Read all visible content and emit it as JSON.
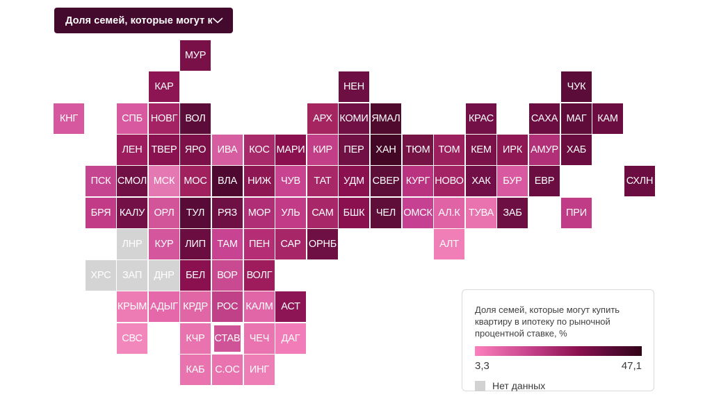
{
  "dropdown": {
    "label": "Доля семей, которые могут к..."
  },
  "legend": {
    "title_lines": {
      "0": "Доля семей, которые могут купить",
      "1": "квартиру в ипотеку по рыночной",
      "2": "процентной ставке, %"
    },
    "min": "3,3",
    "max": "47,1",
    "no_data_label": "Нет данных",
    "no_data_color": "#d2d2d2",
    "gradient_stops": [
      "#fc80bd 0%",
      "#c23f88 35%",
      "#8a1050 62%",
      "#570b36 82%",
      "#330318 100%"
    ]
  },
  "chart_data": {
    "type": "heatmap",
    "variant": "tile-grid-cartogram",
    "title": "Доля семей, которые могут купить квартиру в ипотеку по рыночной процентной ставке, %",
    "scale": {
      "min": 3.3,
      "max": 47.1,
      "min_label": "3,3",
      "max_label": "47,1",
      "no_data_label": "Нет данных"
    },
    "layout": {
      "col_pitch": 45.6,
      "row_pitch": 45.3,
      "tile_size": 44
    },
    "tiles": [
      {
        "label": "МУР",
        "row": 0,
        "col": 4,
        "color": "#7a1048"
      },
      {
        "label": "КАР",
        "row": 1,
        "col": 3,
        "color": "#8e1553"
      },
      {
        "label": "НЕН",
        "row": 1,
        "col": 9,
        "color": "#6d0f42"
      },
      {
        "label": "ЧУК",
        "row": 1,
        "col": 16,
        "color": "#5c0c38"
      },
      {
        "label": "КНГ",
        "row": 2,
        "col": 0,
        "color": "#d6589e"
      },
      {
        "label": "СПБ",
        "row": 2,
        "col": 2,
        "color": "#d8599f"
      },
      {
        "label": "НОВГ",
        "row": 2,
        "col": 3,
        "color": "#a32364"
      },
      {
        "label": "ВОЛ",
        "row": 2,
        "col": 4,
        "color": "#5c0c38"
      },
      {
        "label": "АРХ",
        "row": 2,
        "col": 8,
        "color": "#a52561"
      },
      {
        "label": "КОМИ",
        "row": 2,
        "col": 9,
        "color": "#701044"
      },
      {
        "label": "ЯМАЛ",
        "row": 2,
        "col": 10,
        "color": "#4f0a2e"
      },
      {
        "label": "КРАС",
        "row": 2,
        "col": 13,
        "color": "#721047"
      },
      {
        "label": "САХА",
        "row": 2,
        "col": 15,
        "color": "#6b0d40"
      },
      {
        "label": "МАГ",
        "row": 2,
        "col": 16,
        "color": "#600c3b"
      },
      {
        "label": "КАМ",
        "row": 2,
        "col": 17,
        "color": "#6b0d40"
      },
      {
        "label": "ЛЕН",
        "row": 3,
        "col": 2,
        "color": "#9e1d5e"
      },
      {
        "label": "ТВЕР",
        "row": 3,
        "col": 3,
        "color": "#8a1250"
      },
      {
        "label": "ЯРО",
        "row": 3,
        "col": 4,
        "color": "#7d1048"
      },
      {
        "label": "ИВА",
        "row": 3,
        "col": 5,
        "color": "#d75da1"
      },
      {
        "label": "КОС",
        "row": 3,
        "col": 6,
        "color": "#a82a6a"
      },
      {
        "label": "МАРИ",
        "row": 3,
        "col": 7,
        "color": "#8a1050"
      },
      {
        "label": "КИР",
        "row": 3,
        "col": 8,
        "color": "#c23f88"
      },
      {
        "label": "ПЕР",
        "row": 3,
        "col": 9,
        "color": "#701044"
      },
      {
        "label": "ХАН",
        "row": 3,
        "col": 10,
        "color": "#430624"
      },
      {
        "label": "ТЮМ",
        "row": 3,
        "col": 11,
        "color": "#751345"
      },
      {
        "label": "ТОМ",
        "row": 3,
        "col": 12,
        "color": "#9c1f5e"
      },
      {
        "label": "КЕМ",
        "row": 3,
        "col": 13,
        "color": "#7a1148"
      },
      {
        "label": "ИРК",
        "row": 3,
        "col": 14,
        "color": "#8e1754"
      },
      {
        "label": "АМУР",
        "row": 3,
        "col": 15,
        "color": "#b23078"
      },
      {
        "label": "ХАБ",
        "row": 3,
        "col": 16,
        "color": "#6b0d40"
      },
      {
        "label": "ПСК",
        "row": 4,
        "col": 1,
        "color": "#c64590"
      },
      {
        "label": "СМОЛ",
        "row": 4,
        "col": 2,
        "color": "#701044"
      },
      {
        "label": "МСК",
        "row": 4,
        "col": 3,
        "color": "#e478b2"
      },
      {
        "label": "МОС",
        "row": 4,
        "col": 4,
        "color": "#a1215f"
      },
      {
        "label": "ВЛА",
        "row": 4,
        "col": 5,
        "color": "#4f0830"
      },
      {
        "label": "НИЖ",
        "row": 4,
        "col": 6,
        "color": "#8e1754"
      },
      {
        "label": "ЧУВ",
        "row": 4,
        "col": 7,
        "color": "#c84390"
      },
      {
        "label": "ТАТ",
        "row": 4,
        "col": 8,
        "color": "#a82766"
      },
      {
        "label": "УДМ",
        "row": 4,
        "col": 9,
        "color": "#8a1050"
      },
      {
        "label": "СВЕР",
        "row": 4,
        "col": 10,
        "color": "#5c0d38"
      },
      {
        "label": "КУРГ",
        "row": 4,
        "col": 11,
        "color": "#b93380"
      },
      {
        "label": "НОВО",
        "row": 4,
        "col": 12,
        "color": "#a32364"
      },
      {
        "label": "ХАК",
        "row": 4,
        "col": 13,
        "color": "#730f48"
      },
      {
        "label": "БУР",
        "row": 4,
        "col": 14,
        "color": "#d8599f"
      },
      {
        "label": "ЕВР",
        "row": 4,
        "col": 15,
        "color": "#6b0d40"
      },
      {
        "label": "СХЛН",
        "row": 4,
        "col": 18,
        "color": "#6b0d40"
      },
      {
        "label": "БРЯ",
        "row": 5,
        "col": 1,
        "color": "#c13b86"
      },
      {
        "label": "КАЛУ",
        "row": 5,
        "col": 2,
        "color": "#731048"
      },
      {
        "label": "ОРЛ",
        "row": 5,
        "col": 3,
        "color": "#d25499"
      },
      {
        "label": "ТУЛ",
        "row": 5,
        "col": 4,
        "color": "#570b36"
      },
      {
        "label": "РЯЗ",
        "row": 5,
        "col": 5,
        "color": "#6e1044"
      },
      {
        "label": "МОР",
        "row": 5,
        "col": 6,
        "color": "#b02e76"
      },
      {
        "label": "УЛЬ",
        "row": 5,
        "col": 7,
        "color": "#c13b86"
      },
      {
        "label": "САМ",
        "row": 5,
        "col": 8,
        "color": "#a82768"
      },
      {
        "label": "БШК",
        "row": 5,
        "col": 9,
        "color": "#8a1050"
      },
      {
        "label": "ЧЕЛ",
        "row": 5,
        "col": 10,
        "color": "#5f0e3a"
      },
      {
        "label": "ОМСК",
        "row": 5,
        "col": 11,
        "color": "#c64192"
      },
      {
        "label": "АЛ.К",
        "row": 5,
        "col": 12,
        "color": "#df63a5"
      },
      {
        "label": "ТУВА",
        "row": 5,
        "col": 13,
        "color": "#e873ae"
      },
      {
        "label": "ЗАБ",
        "row": 5,
        "col": 14,
        "color": "#6e0f44"
      },
      {
        "label": "ПРИ",
        "row": 5,
        "col": 16,
        "color": "#c13c86"
      },
      {
        "label": "ЛНР",
        "row": 6,
        "col": 2,
        "color": "#d4d4d4",
        "no_data": true
      },
      {
        "label": "КУР",
        "row": 6,
        "col": 3,
        "color": "#d4569c"
      },
      {
        "label": "ЛИП",
        "row": 6,
        "col": 4,
        "color": "#6b0d40"
      },
      {
        "label": "ТАМ",
        "row": 6,
        "col": 5,
        "color": "#c84392"
      },
      {
        "label": "ПЕН",
        "row": 6,
        "col": 6,
        "color": "#b52e75"
      },
      {
        "label": "САР",
        "row": 6,
        "col": 7,
        "color": "#a62667"
      },
      {
        "label": "ОРНБ",
        "row": 6,
        "col": 8,
        "color": "#6e1044"
      },
      {
        "label": "АЛТ",
        "row": 6,
        "col": 12,
        "color": "#f07fb7"
      },
      {
        "label": "ХРС",
        "row": 7,
        "col": 1,
        "color": "#d4d4d4",
        "no_data": true
      },
      {
        "label": "ЗАП",
        "row": 7,
        "col": 2,
        "color": "#d4d4d4",
        "no_data": true
      },
      {
        "label": "ДНР",
        "row": 7,
        "col": 3,
        "color": "#d4d4d4",
        "no_data": true
      },
      {
        "label": "БЕЛ",
        "row": 7,
        "col": 4,
        "color": "#8a1050"
      },
      {
        "label": "ВОР",
        "row": 7,
        "col": 5,
        "color": "#ca4a91"
      },
      {
        "label": "ВОЛГ",
        "row": 7,
        "col": 6,
        "color": "#9e1c5c"
      },
      {
        "label": "КРЫМ",
        "row": 8,
        "col": 2,
        "color": "#ed7cb4"
      },
      {
        "label": "АДЫГ",
        "row": 8,
        "col": 3,
        "color": "#e468aa"
      },
      {
        "label": "КРДР",
        "row": 8,
        "col": 4,
        "color": "#e066a6"
      },
      {
        "label": "РОС",
        "row": 8,
        "col": 5,
        "color": "#c04187"
      },
      {
        "label": "КАЛМ",
        "row": 8,
        "col": 6,
        "color": "#e066a8"
      },
      {
        "label": "АСТ",
        "row": 8,
        "col": 7,
        "color": "#8e1555"
      },
      {
        "label": "СВС",
        "row": 9,
        "col": 2,
        "color": "#f287bc"
      },
      {
        "label": "КЧР",
        "row": 9,
        "col": 4,
        "color": "#e873ae"
      },
      {
        "label": "СТАВ",
        "row": 9,
        "col": 5,
        "color": "#cf5397",
        "highlighted": true
      },
      {
        "label": "ЧЕЧ",
        "row": 9,
        "col": 6,
        "color": "#ea74b0"
      },
      {
        "label": "ДАГ",
        "row": 9,
        "col": 7,
        "color": "#f27cb8"
      },
      {
        "label": "КАБ",
        "row": 10,
        "col": 4,
        "color": "#e873ae"
      },
      {
        "label": "С.ОС",
        "row": 10,
        "col": 5,
        "color": "#e873ae"
      },
      {
        "label": "ИНГ",
        "row": 10,
        "col": 6,
        "color": "#ee7eb6"
      }
    ]
  }
}
